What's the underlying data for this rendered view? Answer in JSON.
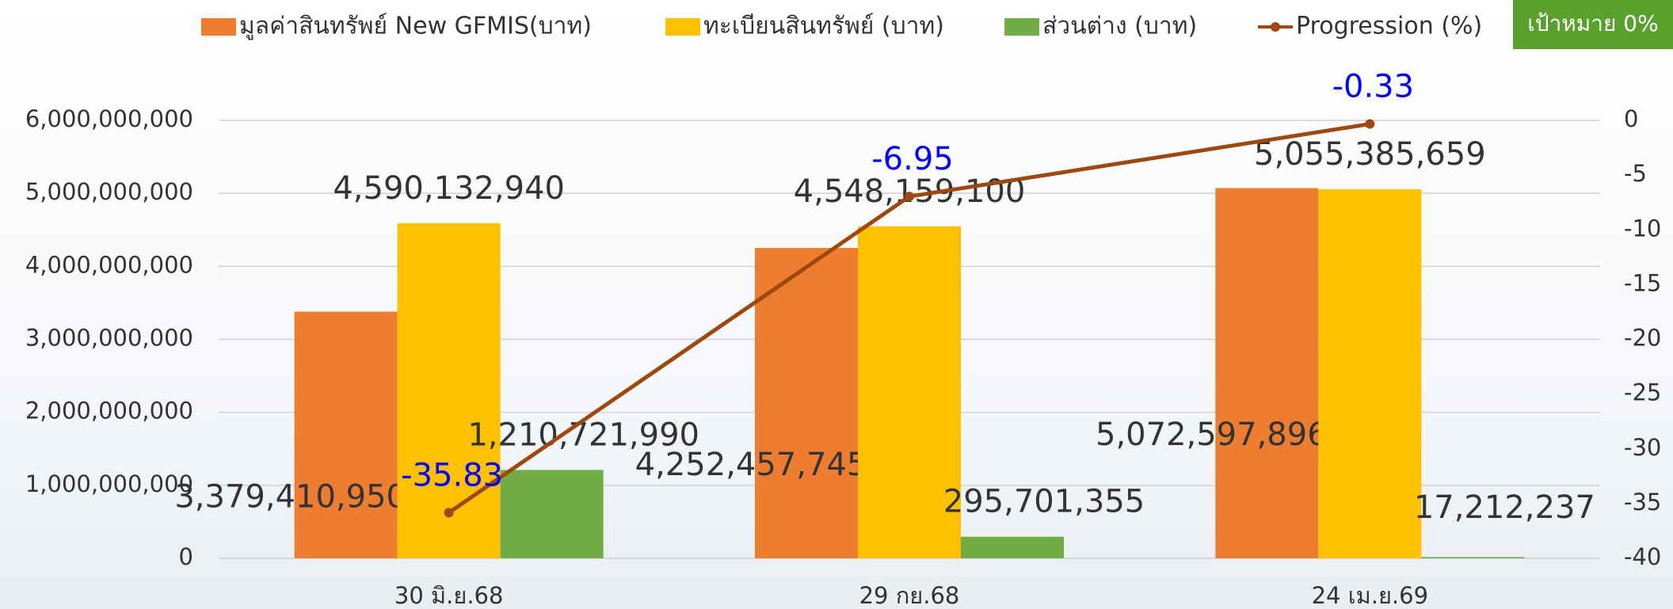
{
  "chart_data": {
    "type": "bar",
    "annotation": "เป้าหมาย 0%",
    "categories": [
      "30 มิ.ย.68",
      "29 กย.68",
      "24 เม.ย.69"
    ],
    "series": [
      {
        "name": "มูลค่าสินทรัพย์ New GFMIS(บาท)",
        "color": "#ed7d31",
        "values": [
          3379410950,
          4252457745,
          5072597896
        ],
        "value_labels": [
          "3,379,410,950",
          "4,252,457,745",
          "5,072,597,896"
        ]
      },
      {
        "name": "ทะเบียนสินทรัพย์ (บาท)",
        "color": "#ffc000",
        "values": [
          4590132940,
          4548159100,
          5055385659
        ],
        "value_labels": [
          "4,590,132,940",
          "4,548,159,100",
          "5,055,385,659"
        ]
      },
      {
        "name": "ส่วนต่าง (บาท)",
        "color": "#70ad47",
        "values": [
          1210721990,
          295701355,
          17212237
        ],
        "value_labels": [
          "1,210,721,990",
          "295,701,355",
          "17,212,237"
        ]
      },
      {
        "name": "Progression (%)",
        "color": "#9e480e",
        "type": "line",
        "axis": "y2",
        "values": [
          -35.83,
          -6.95,
          -0.33
        ]
      }
    ],
    "ylim": [
      0,
      6000000000
    ],
    "yticks": [
      0,
      {
        "value": 1000000000,
        "label": "1,000,000,000"
      },
      {
        "value": 2000000000,
        "label": "2,000,000,000"
      },
      {
        "value": 3000000000,
        "label": "3,000,000,000"
      },
      {
        "value": 4000000000,
        "label": "4,000,000,000"
      },
      {
        "value": 5000000000,
        "label": "5,000,000,000"
      },
      {
        "value": 6000000000,
        "label": "6,000,000,000"
      }
    ],
    "y2lim": [
      -40,
      0
    ],
    "y2ticks": [
      -40,
      -35,
      -30,
      -25,
      -20,
      -15,
      -10,
      -5,
      0
    ],
    "grid": true
  }
}
